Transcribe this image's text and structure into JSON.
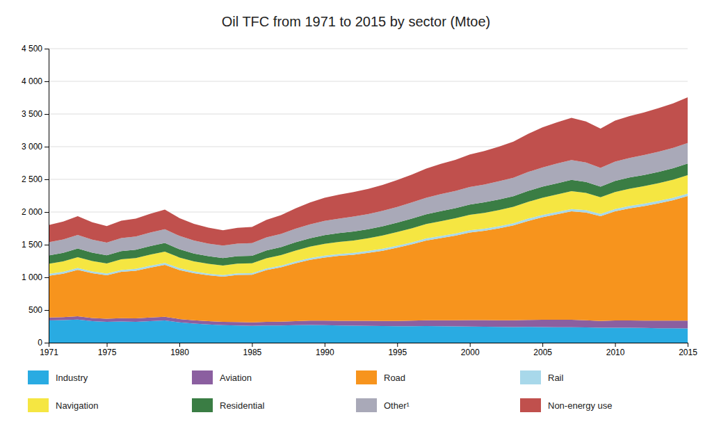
{
  "chart_data": {
    "type": "area",
    "stacked": true,
    "title": "Oil TFC from 1971 to 2015 by sector (Mtoe)",
    "x": [
      1971,
      1972,
      1973,
      1974,
      1975,
      1976,
      1977,
      1978,
      1979,
      1980,
      1981,
      1982,
      1983,
      1984,
      1985,
      1986,
      1987,
      1988,
      1989,
      1990,
      1991,
      1992,
      1993,
      1994,
      1995,
      1996,
      1997,
      1998,
      1999,
      2000,
      2001,
      2002,
      2003,
      2004,
      2005,
      2006,
      2007,
      2008,
      2009,
      2010,
      2011,
      2012,
      2013,
      2014,
      2015
    ],
    "series": [
      {
        "name": "Industry",
        "color": "#29ABE2",
        "values": [
          340,
          345,
          355,
          330,
          320,
          325,
          320,
          330,
          340,
          310,
          292,
          278,
          268,
          264,
          258,
          262,
          263,
          268,
          272,
          268,
          263,
          260,
          258,
          255,
          252,
          252,
          254,
          252,
          250,
          248,
          245,
          242,
          240,
          242,
          240,
          238,
          237,
          233,
          228,
          230,
          228,
          225,
          222,
          220,
          218
        ]
      },
      {
        "name": "Aviation",
        "color": "#8B5FA0",
        "values": [
          45,
          47,
          50,
          48,
          47,
          50,
          52,
          55,
          57,
          53,
          52,
          51,
          50,
          52,
          53,
          57,
          60,
          62,
          66,
          69,
          72,
          74,
          76,
          78,
          81,
          85,
          89,
          92,
          94,
          97,
          100,
          102,
          104,
          107,
          110,
          112,
          113,
          110,
          104,
          110,
          112,
          114,
          116,
          119,
          121
        ]
      },
      {
        "name": "Road",
        "color": "#F7941D",
        "values": [
          640,
          665,
          710,
          685,
          665,
          710,
          730,
          765,
          795,
          750,
          720,
          703,
          692,
          720,
          730,
          793,
          830,
          885,
          930,
          967,
          994,
          1012,
          1040,
          1075,
          1122,
          1167,
          1221,
          1258,
          1295,
          1342,
          1368,
          1405,
          1450,
          1514,
          1570,
          1615,
          1660,
          1650,
          1605,
          1670,
          1717,
          1752,
          1796,
          1843,
          1906
        ]
      },
      {
        "name": "Rail",
        "color": "#A8D8EA",
        "values": [
          28,
          28,
          29,
          28,
          27,
          28,
          28,
          29,
          30,
          28,
          26,
          25,
          24,
          24,
          23,
          24,
          25,
          26,
          27,
          28,
          28,
          29,
          29,
          30,
          30,
          31,
          31,
          32,
          32,
          33,
          33,
          34,
          34,
          35,
          35,
          35,
          36,
          35,
          34,
          35,
          35,
          36,
          36,
          37,
          37
        ]
      },
      {
        "name": "Navigation",
        "color": "#F5E642",
        "values": [
          155,
          160,
          165,
          160,
          155,
          163,
          165,
          169,
          172,
          163,
          155,
          151,
          148,
          150,
          151,
          157,
          163,
          169,
          175,
          181,
          185,
          190,
          196,
          203,
          208,
          215,
          221,
          226,
          232,
          238,
          242,
          247,
          251,
          257,
          263,
          269,
          272,
          265,
          254,
          261,
          265,
          268,
          272,
          276,
          281
        ]
      },
      {
        "name": "Residential",
        "color": "#3A7D44",
        "values": [
          128,
          130,
          132,
          126,
          123,
          126,
          128,
          130,
          132,
          126,
          120,
          116,
          114,
          115,
          116,
          120,
          123,
          126,
          129,
          132,
          135,
          137,
          138,
          141,
          144,
          148,
          150,
          153,
          155,
          157,
          160,
          162,
          164,
          167,
          169,
          171,
          173,
          168,
          164,
          169,
          171,
          172,
          173,
          175,
          178
        ]
      },
      {
        "name": "Other¹",
        "color": "#A9A9B8",
        "values": [
          200,
          205,
          208,
          200,
          196,
          200,
          202,
          208,
          212,
          205,
          199,
          193,
          190,
          191,
          193,
          199,
          202,
          208,
          213,
          219,
          223,
          228,
          232,
          237,
          241,
          247,
          253,
          260,
          264,
          269,
          273,
          278,
          282,
          289,
          295,
          301,
          305,
          296,
          287,
          296,
          300,
          305,
          308,
          311,
          316
        ]
      },
      {
        "name": "Non-energy use",
        "color": "#C0504D",
        "values": [
          265,
          273,
          287,
          265,
          252,
          265,
          273,
          287,
          300,
          273,
          256,
          243,
          234,
          243,
          247,
          269,
          287,
          313,
          335,
          353,
          366,
          375,
          384,
          397,
          411,
          428,
          446,
          464,
          477,
          495,
          513,
          530,
          552,
          583,
          614,
          632,
          645,
          629,
          600,
          627,
          641,
          653,
          667,
          680,
          698
        ]
      }
    ],
    "xlim": [
      1971,
      2015
    ],
    "xticks": [
      1971,
      1975,
      1980,
      1985,
      1990,
      1995,
      2000,
      2005,
      2010,
      2015
    ],
    "ylim": [
      0,
      4500
    ],
    "yticks": [
      0,
      500,
      {
        "value": 1000,
        "label": "1 000"
      },
      {
        "value": 1500,
        "label": "1 500"
      },
      {
        "value": 2000,
        "label": "2 000"
      },
      {
        "value": 2500,
        "label": "2 500"
      },
      {
        "value": 3000,
        "label": "3 000"
      },
      {
        "value": 3500,
        "label": "3 500"
      },
      {
        "value": 4000,
        "label": "4 000"
      },
      {
        "value": 4500,
        "label": "4 500"
      }
    ],
    "grid": "y",
    "legend": "bottom"
  }
}
